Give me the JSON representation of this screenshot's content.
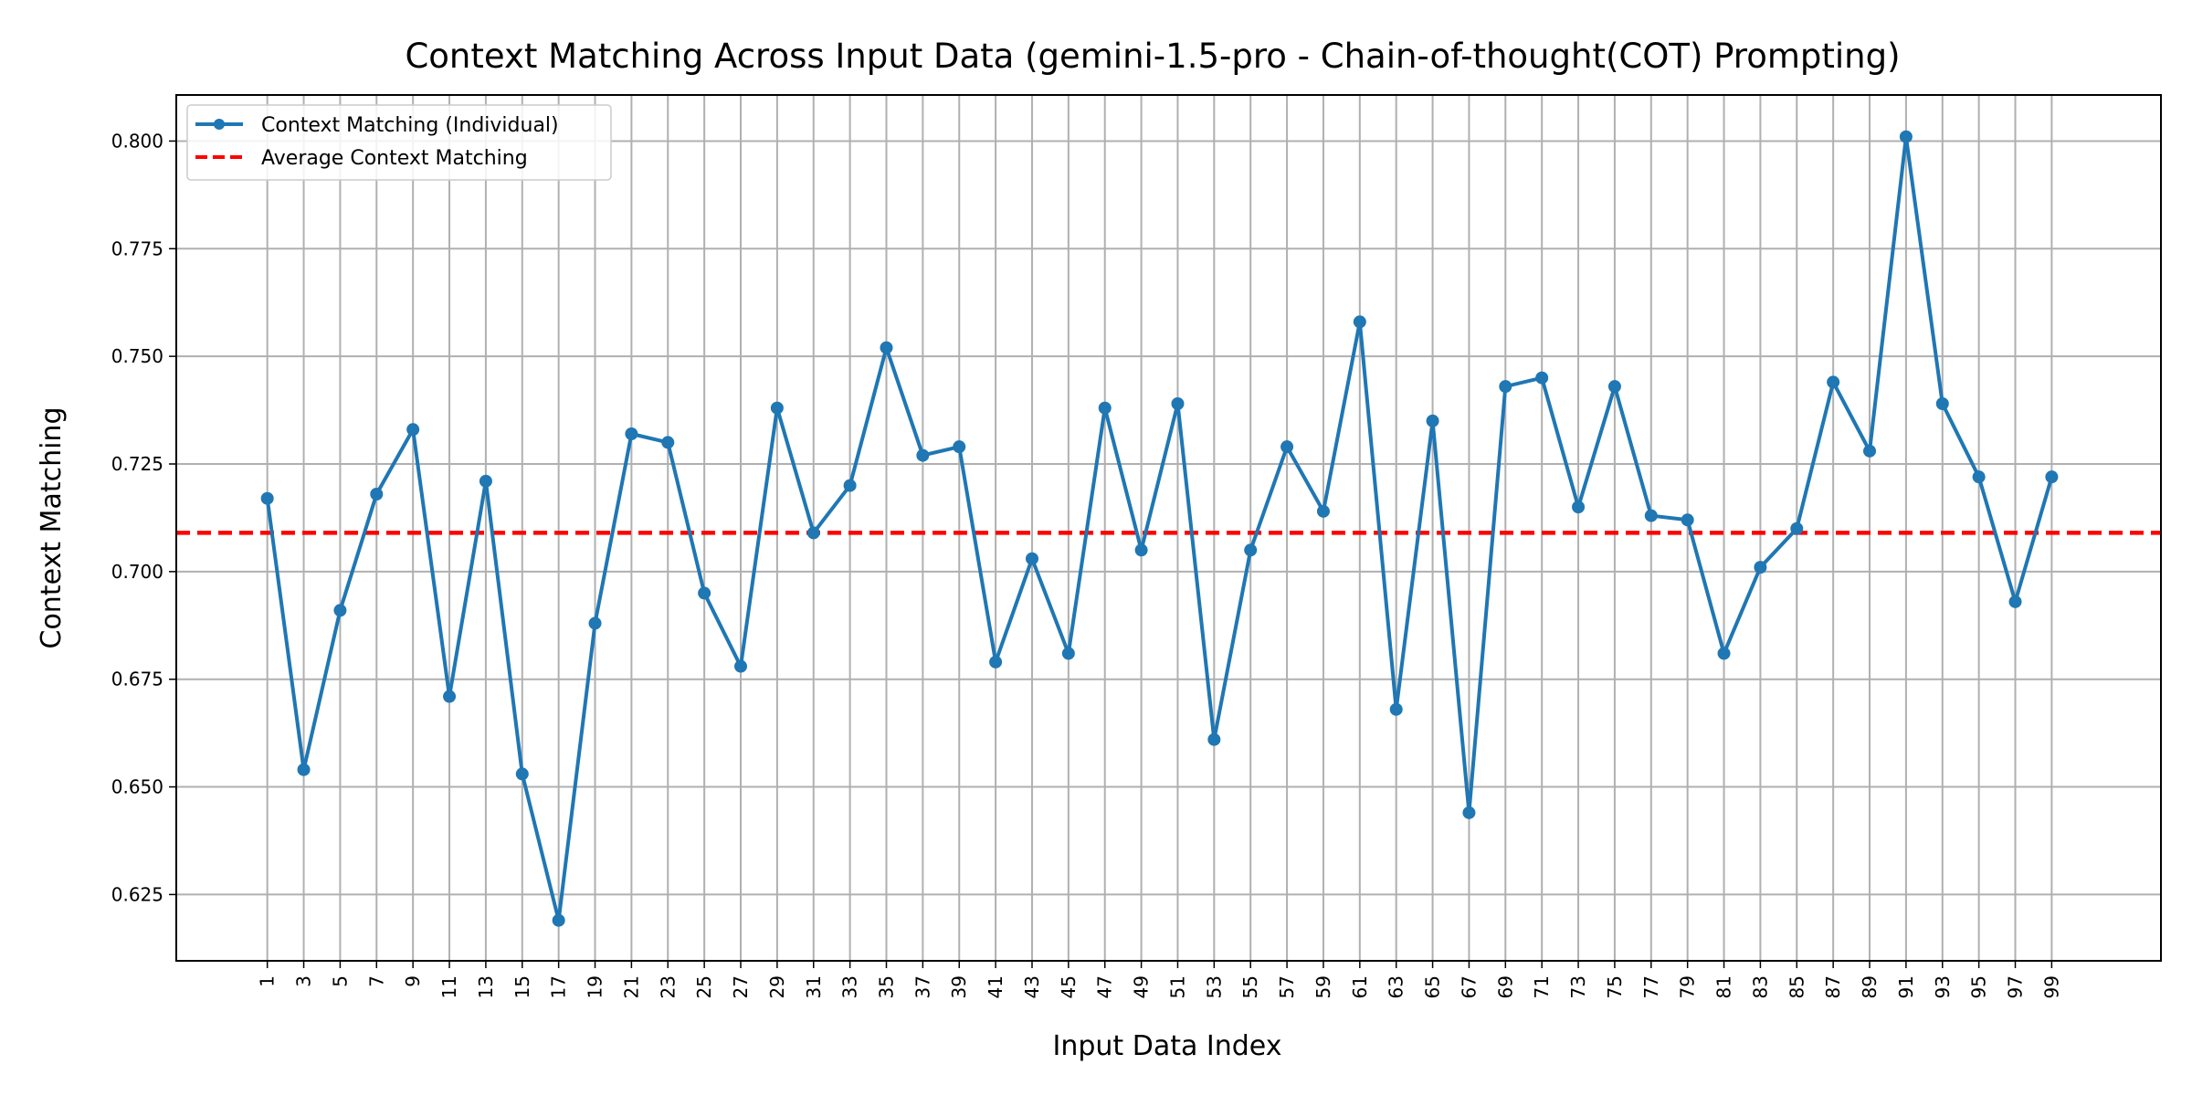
{
  "chart_data": {
    "type": "line",
    "title": "Context Matching Across Input Data (gemini-1.5-pro - Chain-of-thought(COT) Prompting)",
    "xlabel": "Input Data Index",
    "ylabel": "Context Matching",
    "x": [
      1,
      3,
      5,
      7,
      9,
      11,
      13,
      15,
      17,
      19,
      21,
      23,
      25,
      27,
      29,
      31,
      33,
      35,
      37,
      39,
      41,
      43,
      45,
      47,
      49,
      51,
      53,
      55,
      57,
      59,
      61,
      63,
      65,
      67,
      69,
      71,
      73,
      75,
      77,
      79,
      81,
      83,
      85,
      87,
      89,
      91,
      93,
      95,
      97,
      99
    ],
    "xticks": [
      "1",
      "3",
      "5",
      "7",
      "9",
      "11",
      "13",
      "15",
      "17",
      "19",
      "21",
      "23",
      "25",
      "27",
      "29",
      "31",
      "33",
      "35",
      "37",
      "39",
      "41",
      "43",
      "45",
      "47",
      "49",
      "51",
      "53",
      "55",
      "57",
      "59",
      "61",
      "63",
      "65",
      "67",
      "69",
      "71",
      "73",
      "75",
      "77",
      "79",
      "81",
      "83",
      "85",
      "87",
      "89",
      "91",
      "93",
      "95",
      "97",
      "99"
    ],
    "xlim": [
      -4,
      105
    ],
    "ylim": [
      0.6096,
      0.8107
    ],
    "yticks": [
      0.625,
      0.65,
      0.675,
      0.7,
      0.725,
      0.75,
      0.775,
      0.8
    ],
    "ytick_labels": [
      "0.625",
      "0.650",
      "0.675",
      "0.700",
      "0.725",
      "0.750",
      "0.775",
      "0.800"
    ],
    "series": [
      {
        "name": "Context Matching (Individual)",
        "color": "#1f77b4",
        "style": "solid-with-markers",
        "values": [
          0.717,
          0.654,
          0.691,
          0.718,
          0.733,
          0.671,
          0.721,
          0.653,
          0.619,
          0.688,
          0.732,
          0.73,
          0.695,
          0.678,
          0.738,
          0.709,
          0.72,
          0.752,
          0.727,
          0.729,
          0.679,
          0.703,
          0.681,
          0.738,
          0.705,
          0.739,
          0.661,
          0.705,
          0.729,
          0.714,
          0.758,
          0.668,
          0.735,
          0.644,
          0.743,
          0.745,
          0.715,
          0.743,
          0.713,
          0.712,
          0.681,
          0.701,
          0.71,
          0.744,
          0.728,
          0.801,
          0.739,
          0.722,
          0.693,
          0.722
        ]
      },
      {
        "name": "Average Context Matching",
        "color": "#ff0000",
        "style": "dashed",
        "value": 0.709
      }
    ],
    "grid": true,
    "legend_position": "top-left"
  }
}
